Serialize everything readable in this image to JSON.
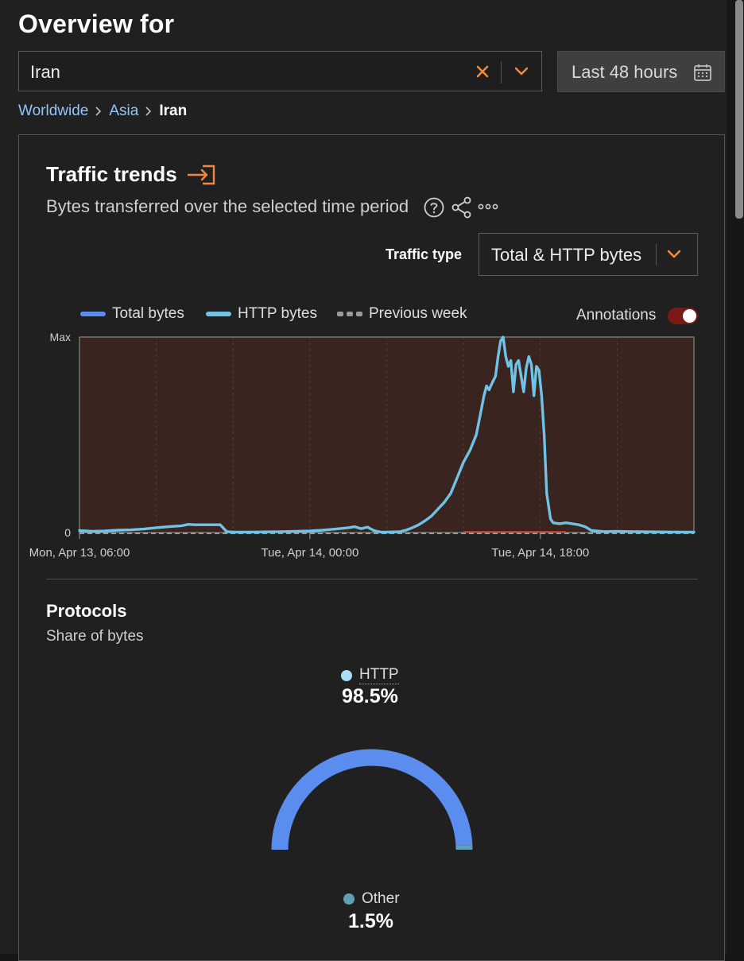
{
  "header": {
    "title": "Overview for"
  },
  "location_select": {
    "value": "Iran"
  },
  "date_range": {
    "label": "Last 48 hours"
  },
  "breadcrumb": {
    "items": [
      "Worldwide",
      "Asia"
    ],
    "current": "Iran"
  },
  "traffic": {
    "title": "Traffic trends",
    "subtitle": "Bytes transferred over the selected time period",
    "traffic_type_label": "Traffic type",
    "traffic_type_value": "Total & HTTP bytes",
    "legend": [
      {
        "name": "Total bytes",
        "color": "#5b8def",
        "style": "solid"
      },
      {
        "name": "HTTP bytes",
        "color": "#6ec3e6",
        "style": "solid"
      },
      {
        "name": "Previous week",
        "color": "#9a9a9a",
        "style": "dashed"
      }
    ],
    "annotations_label": "Annotations",
    "annotations_on": true
  },
  "chart_data": {
    "type": "line",
    "x_unit": "hours since Mon, Apr 13, 06:00",
    "x_range": [
      0,
      48
    ],
    "x_ticks": [
      {
        "x": 0,
        "label": "Mon, Apr 13, 06:00"
      },
      {
        "x": 18,
        "label": "Tue, Apr 14, 00:00"
      },
      {
        "x": 36,
        "label": "Tue, Apr 14, 18:00"
      }
    ],
    "y_ticks": [
      {
        "y": 0,
        "label": "0"
      },
      {
        "y": 1,
        "label": "Max"
      }
    ],
    "y_range": [
      0,
      1
    ],
    "annotation_shading": {
      "from": 0,
      "to": 48,
      "color": "#3a2420"
    },
    "series": [
      {
        "name": "HTTP bytes",
        "color": "#6ec3e6",
        "points": [
          [
            0,
            0.01
          ],
          [
            1,
            0.006
          ],
          [
            2,
            0.008
          ],
          [
            3,
            0.012
          ],
          [
            4,
            0.014
          ],
          [
            5,
            0.018
          ],
          [
            6,
            0.025
          ],
          [
            7,
            0.03
          ],
          [
            8,
            0.035
          ],
          [
            8.5,
            0.042
          ],
          [
            9,
            0.04
          ],
          [
            10,
            0.04
          ],
          [
            11,
            0.04
          ],
          [
            11.5,
            0.005
          ],
          [
            12,
            0.002
          ],
          [
            14,
            0.003
          ],
          [
            16,
            0.005
          ],
          [
            18,
            0.008
          ],
          [
            19,
            0.012
          ],
          [
            20,
            0.018
          ],
          [
            21,
            0.025
          ],
          [
            21.5,
            0.03
          ],
          [
            22,
            0.02
          ],
          [
            22.5,
            0.028
          ],
          [
            23,
            0.01
          ],
          [
            23.5,
            0.003
          ],
          [
            24,
            0.002
          ],
          [
            25,
            0.004
          ],
          [
            25.5,
            0.012
          ],
          [
            26,
            0.025
          ],
          [
            26.5,
            0.04
          ],
          [
            27,
            0.06
          ],
          [
            27.5,
            0.085
          ],
          [
            28,
            0.12
          ],
          [
            28.5,
            0.155
          ],
          [
            29,
            0.2
          ],
          [
            29.5,
            0.28
          ],
          [
            30,
            0.36
          ],
          [
            30.5,
            0.42
          ],
          [
            31,
            0.5
          ],
          [
            31.3,
            0.6
          ],
          [
            31.6,
            0.7
          ],
          [
            31.8,
            0.75
          ],
          [
            32,
            0.73
          ],
          [
            32.2,
            0.76
          ],
          [
            32.5,
            0.8
          ],
          [
            32.7,
            0.9
          ],
          [
            32.9,
            0.98
          ],
          [
            33.1,
            1.0
          ],
          [
            33.3,
            0.9
          ],
          [
            33.5,
            0.85
          ],
          [
            33.7,
            0.88
          ],
          [
            33.9,
            0.72
          ],
          [
            34.1,
            0.86
          ],
          [
            34.3,
            0.88
          ],
          [
            34.5,
            0.8
          ],
          [
            34.7,
            0.72
          ],
          [
            34.9,
            0.84
          ],
          [
            35.1,
            0.9
          ],
          [
            35.3,
            0.86
          ],
          [
            35.5,
            0.7
          ],
          [
            35.7,
            0.85
          ],
          [
            35.9,
            0.83
          ],
          [
            36.1,
            0.7
          ],
          [
            36.3,
            0.5
          ],
          [
            36.5,
            0.2
          ],
          [
            36.8,
            0.07
          ],
          [
            37,
            0.05
          ],
          [
            37.5,
            0.045
          ],
          [
            38,
            0.05
          ],
          [
            38.5,
            0.045
          ],
          [
            39,
            0.04
          ],
          [
            39.5,
            0.03
          ],
          [
            40,
            0.01
          ],
          [
            41,
            0.005
          ],
          [
            42,
            0.006
          ],
          [
            43,
            0.005
          ],
          [
            44,
            0.004
          ],
          [
            46,
            0.003
          ],
          [
            48,
            0.002
          ]
        ]
      },
      {
        "name": "Previous week",
        "color": "#9a9a9a",
        "points": [
          [
            0,
            0.0
          ],
          [
            48,
            0.0
          ]
        ]
      }
    ]
  },
  "protocols": {
    "title": "Protocols",
    "subtitle": "Share of bytes",
    "items": [
      {
        "name": "HTTP",
        "percent": "98.5%",
        "value": 98.5,
        "dot_color": "#a9dcf5",
        "arc_color": "#5b8def"
      },
      {
        "name": "Other",
        "percent": "1.5%",
        "value": 1.5,
        "dot_color": "#5f9fb3",
        "arc_color": "#5f9fb3"
      }
    ]
  }
}
